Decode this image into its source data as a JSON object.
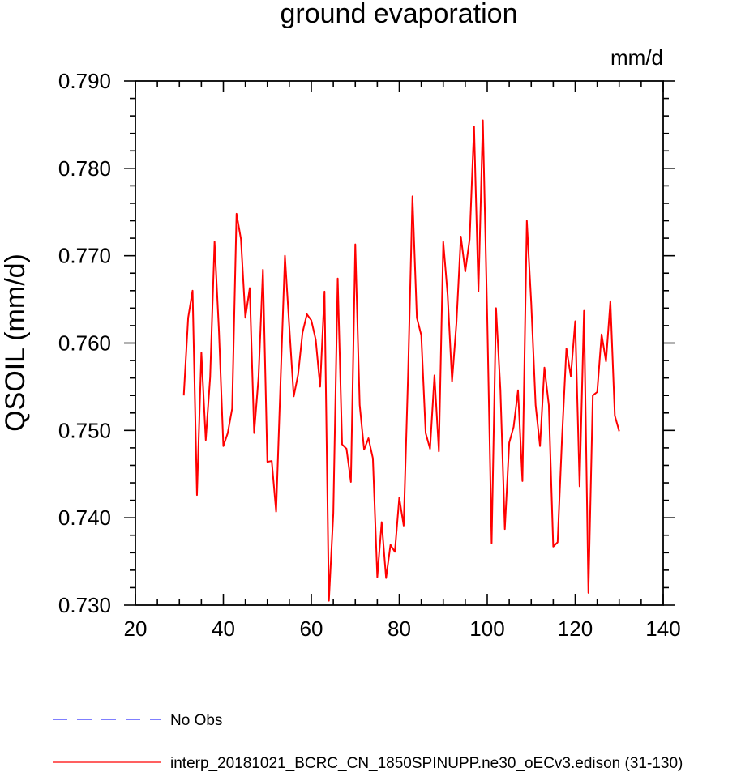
{
  "chart_data": {
    "type": "line",
    "title": "ground evaporation",
    "units": "mm/d",
    "ylabel": "QSOIL  (mm/d)",
    "xlabel": "",
    "xlim": [
      20,
      140
    ],
    "ylim": [
      0.73,
      0.79
    ],
    "x_ticks": [
      20,
      40,
      60,
      80,
      100,
      120,
      140
    ],
    "x_tick_labels": [
      "20",
      "40",
      "60",
      "80",
      "100",
      "120",
      "140"
    ],
    "y_ticks": [
      0.73,
      0.74,
      0.75,
      0.76,
      0.77,
      0.78,
      0.79
    ],
    "y_tick_labels": [
      "0.730",
      "0.740",
      "0.750",
      "0.760",
      "0.770",
      "0.780",
      "0.790"
    ],
    "grid": false,
    "legend_position": "bottom-left",
    "series": [
      {
        "name": "interp_20181021_BCRC_CN_1850SPINUPP.ne30_oECv3.edison (31-130)",
        "color": "#ff0000",
        "dash": "solid",
        "x": [
          31,
          32,
          33,
          34,
          35,
          36,
          37,
          38,
          39,
          40,
          41,
          42,
          43,
          44,
          45,
          46,
          47,
          48,
          49,
          50,
          51,
          52,
          53,
          54,
          55,
          56,
          57,
          58,
          59,
          60,
          61,
          62,
          63,
          64,
          65,
          66,
          67,
          68,
          69,
          70,
          71,
          72,
          73,
          74,
          75,
          76,
          77,
          78,
          79,
          80,
          81,
          82,
          83,
          84,
          85,
          86,
          87,
          88,
          89,
          90,
          91,
          92,
          93,
          94,
          95,
          96,
          97,
          98,
          99,
          100,
          101,
          102,
          103,
          104,
          105,
          106,
          107,
          108,
          109,
          110,
          111,
          112,
          113,
          114,
          115,
          116,
          117,
          118,
          119,
          120,
          121,
          122,
          123,
          124,
          125,
          126,
          127,
          128,
          129,
          130
        ],
        "values": [
          0.754,
          0.7629,
          0.766,
          0.7426,
          0.7589,
          0.7489,
          0.7561,
          0.7716,
          0.7614,
          0.7482,
          0.7497,
          0.7525,
          0.7748,
          0.7719,
          0.7629,
          0.7663,
          0.7497,
          0.7561,
          0.7684,
          0.7464,
          0.7465,
          0.7407,
          0.7555,
          0.77,
          0.7618,
          0.7539,
          0.7564,
          0.7612,
          0.7633,
          0.7626,
          0.7604,
          0.755,
          0.7659,
          0.7305,
          0.7405,
          0.7674,
          0.7484,
          0.7479,
          0.7441,
          0.7713,
          0.7529,
          0.7478,
          0.7491,
          0.7468,
          0.7332,
          0.7395,
          0.7331,
          0.7369,
          0.7361,
          0.7423,
          0.7391,
          0.7563,
          0.7768,
          0.7629,
          0.7609,
          0.7497,
          0.7479,
          0.7563,
          0.7476,
          0.7716,
          0.7655,
          0.7556,
          0.7623,
          0.7722,
          0.7682,
          0.7719,
          0.7848,
          0.7659,
          0.7855,
          0.7629,
          0.7371,
          0.764,
          0.7546,
          0.7387,
          0.7486,
          0.7504,
          0.7546,
          0.7442,
          0.774,
          0.7646,
          0.7529,
          0.7482,
          0.7572,
          0.7529,
          0.7367,
          0.7372,
          0.7491,
          0.7594,
          0.7562,
          0.7625,
          0.7436,
          0.7637,
          0.7314,
          0.754,
          0.7544,
          0.761,
          0.7579,
          0.7648,
          0.7517,
          0.7499
        ]
      },
      {
        "name": "No Obs",
        "color": "#3333ff",
        "dash": "dashed",
        "x": [],
        "values": []
      }
    ]
  }
}
